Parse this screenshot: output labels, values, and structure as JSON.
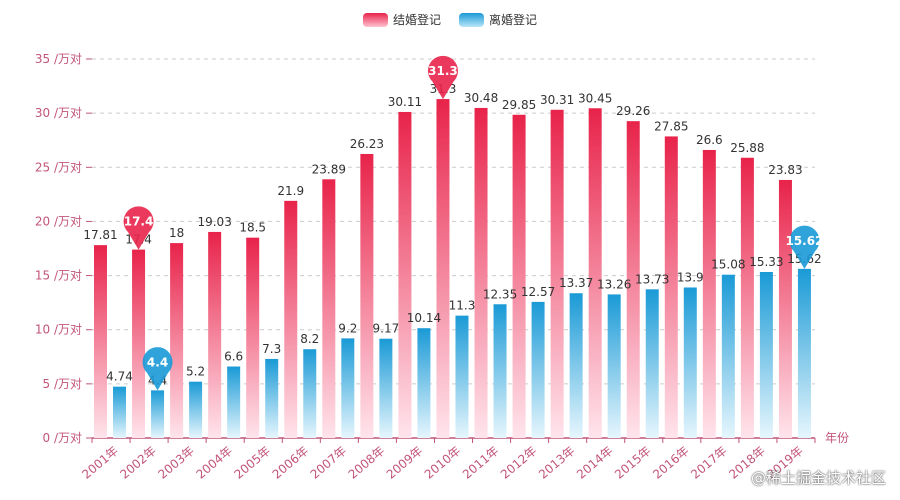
{
  "legend": {
    "marriage_label": "结婚登记",
    "divorce_label": "离婚登记"
  },
  "watermark": "@稀土掘金技术社区",
  "colors": {
    "marriage_top": "#e8234a",
    "marriage_bottom": "#ffe4ec",
    "divorce_top": "#1a9ad6",
    "divorce_bottom": "#e6f6fd",
    "axis_label": "#c2547a",
    "axis_line": "#c2547a",
    "grid": "#cccccc"
  },
  "chart_data": {
    "type": "bar",
    "categories": [
      "2001年",
      "2002年",
      "2003年",
      "2004年",
      "2005年",
      "2006年",
      "2007年",
      "2008年",
      "2009年",
      "2010年",
      "2011年",
      "2012年",
      "2013年",
      "2014年",
      "2015年",
      "2016年",
      "2017年",
      "2018年",
      "2019年"
    ],
    "series": [
      {
        "name": "结婚登记",
        "values": [
          17.81,
          17.4,
          18,
          19.03,
          18.5,
          21.9,
          23.89,
          26.23,
          30.11,
          31.3,
          30.48,
          29.85,
          30.31,
          30.45,
          29.26,
          27.85,
          26.6,
          25.88,
          23.83
        ],
        "markers": [
          {
            "index": 1,
            "label": "17.4"
          },
          {
            "index": 9,
            "label": "31.3"
          }
        ]
      },
      {
        "name": "离婚登记",
        "values": [
          4.74,
          4.4,
          5.2,
          6.6,
          7.3,
          8.2,
          9.2,
          9.17,
          10.14,
          11.3,
          12.35,
          12.57,
          13.37,
          13.26,
          13.73,
          13.9,
          15.08,
          15.33,
          15.62
        ],
        "markers": [
          {
            "index": 1,
            "label": "4.4"
          },
          {
            "index": 18,
            "label": "15.62"
          }
        ]
      }
    ],
    "y_ticks": [
      "0 /万对",
      "5 /万对",
      "10 /万对",
      "15 /万对",
      "20 /万对",
      "25 /万对",
      "30 /万对",
      "35 /万对"
    ],
    "xlabel": "年份",
    "ylabel": "",
    "ylim": [
      0,
      35
    ],
    "y_interval": 5,
    "grid": true,
    "grid_style": "dashed",
    "legend_position": "top-center"
  }
}
